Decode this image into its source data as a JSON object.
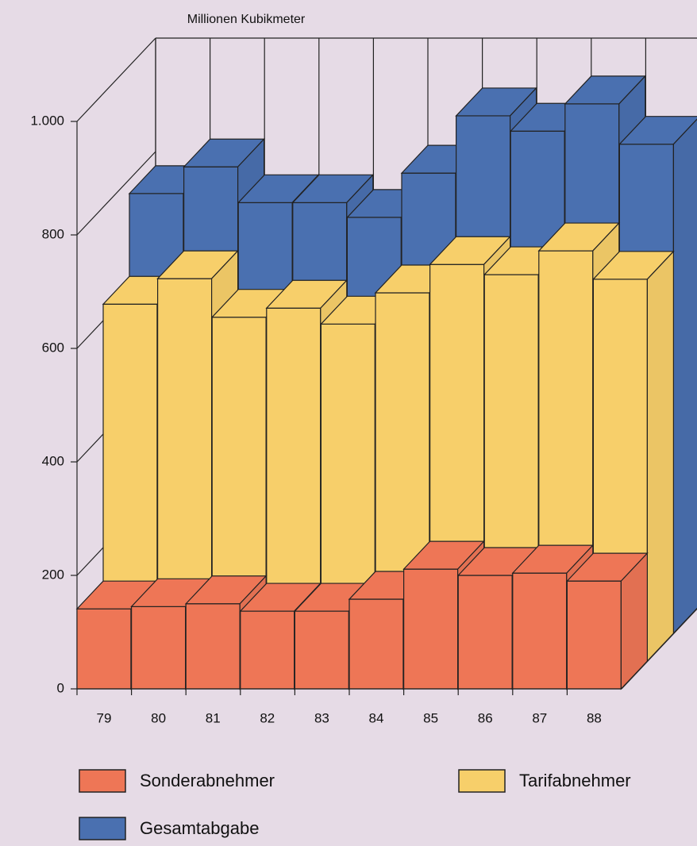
{
  "chart_data": {
    "type": "bar3d",
    "title": "Millionen Kubikmeter",
    "categories": [
      "79",
      "80",
      "81",
      "82",
      "83",
      "84",
      "85",
      "86",
      "87",
      "88"
    ],
    "series": [
      {
        "name": "Sonderabnehmer",
        "color": "#ee7656",
        "values": [
          141,
          145,
          150,
          137,
          137,
          158,
          211,
          200,
          204,
          190
        ]
      },
      {
        "name": "Tarifabnehmer",
        "color": "#f7cf6a",
        "values": [
          629,
          674,
          606,
          622,
          594,
          649,
          699,
          681,
          723,
          673
        ]
      },
      {
        "name": "Gesamtabgabe",
        "color": "#4a70b0",
        "values": [
          775,
          822,
          759,
          759,
          733,
          811,
          912,
          885,
          933,
          862
        ]
      }
    ],
    "ylim": [
      0,
      1000
    ],
    "yticks": [
      0,
      200,
      400,
      600,
      800,
      {
        "value": 1000,
        "label": "1.000"
      }
    ],
    "grid": true
  }
}
